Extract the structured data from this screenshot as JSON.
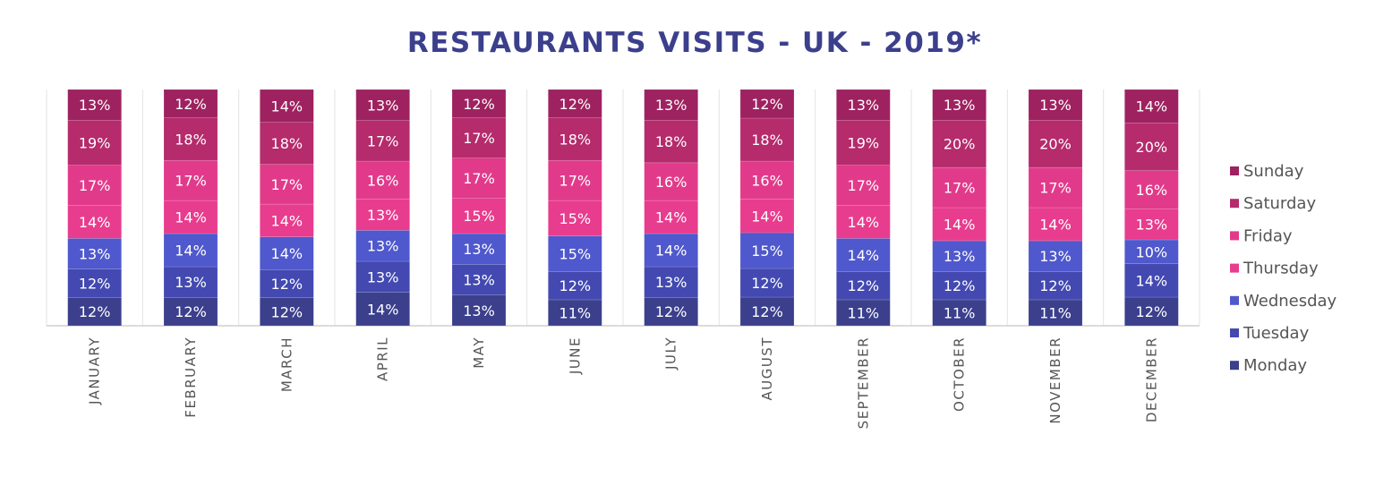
{
  "chart_data": {
    "type": "bar",
    "stacked": true,
    "title": "RESTAURANTS VISITS - UK - 2019*",
    "categories": [
      "JANUARY",
      "FEBRUARY",
      "MARCH",
      "APRIL",
      "MAY",
      "JUNE",
      "JULY",
      "AUGUST",
      "SEPTEMBER",
      "OCTOBER",
      "NOVEMBER",
      "DECEMBER"
    ],
    "series": [
      {
        "name": "Monday",
        "color": "#3b3f8c",
        "values": [
          12,
          12,
          12,
          14,
          13,
          11,
          12,
          12,
          11,
          11,
          11,
          12
        ]
      },
      {
        "name": "Tuesday",
        "color": "#4349b0",
        "values": [
          12,
          13,
          12,
          13,
          13,
          12,
          13,
          12,
          12,
          12,
          12,
          14
        ]
      },
      {
        "name": "Wednesday",
        "color": "#4f58cc",
        "values": [
          13,
          14,
          14,
          13,
          13,
          15,
          14,
          15,
          14,
          13,
          13,
          10
        ]
      },
      {
        "name": "Thursday",
        "color": "#e83c8e",
        "values": [
          14,
          14,
          14,
          13,
          15,
          15,
          14,
          14,
          14,
          14,
          14,
          13
        ]
      },
      {
        "name": "Friday",
        "color": "#e23a8b",
        "values": [
          17,
          17,
          17,
          16,
          17,
          17,
          16,
          16,
          17,
          17,
          17,
          16
        ]
      },
      {
        "name": "Saturday",
        "color": "#b52b6c",
        "values": [
          19,
          18,
          18,
          17,
          17,
          18,
          18,
          18,
          19,
          20,
          20,
          20
        ]
      },
      {
        "name": "Sunday",
        "color": "#9e2260",
        "values": [
          13,
          12,
          14,
          13,
          12,
          12,
          13,
          12,
          13,
          13,
          13,
          14
        ]
      }
    ],
    "value_suffix": "%",
    "legend": [
      "Sunday",
      "Saturday",
      "Friday",
      "Thursday",
      "Wednesday",
      "Tuesday",
      "Monday"
    ],
    "legend_position": "right",
    "grid": false
  }
}
